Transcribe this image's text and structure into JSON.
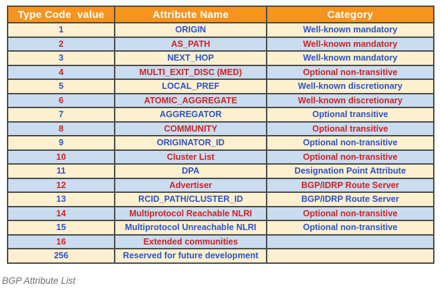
{
  "caption": "BGP Attribute List",
  "table": {
    "headers": {
      "type_code": "Type Code  value",
      "attribute_name": "Attribute Name",
      "category": "Category"
    },
    "rows": [
      {
        "code": "1",
        "name": "ORIGIN",
        "category": "Well-known mandatory"
      },
      {
        "code": "2",
        "name": "AS_PATH",
        "category": "Well-known mandatory"
      },
      {
        "code": "3",
        "name": "NEXT_HOP",
        "category": "Well-known mandatory"
      },
      {
        "code": "4",
        "name": "MULTI_EXIT_DISC (MED)",
        "category": "Optional non-transitive"
      },
      {
        "code": "5",
        "name": "LOCAL_PREF",
        "category": "Well-known discretionary"
      },
      {
        "code": "6",
        "name": "ATOMIC_AGGREGATE",
        "category": "Well-known discretionary"
      },
      {
        "code": "7",
        "name": "AGGREGATOR",
        "category": "Optional transitive"
      },
      {
        "code": "8",
        "name": "COMMUNITY",
        "category": "Optional transitive"
      },
      {
        "code": "9",
        "name": "ORIGINATOR_ID",
        "category": "Optional non-transitive"
      },
      {
        "code": "10",
        "name": "Cluster List",
        "category": "Optional non-transitive"
      },
      {
        "code": "11",
        "name": "DPA",
        "category": "Designation Point Attribute"
      },
      {
        "code": "12",
        "name": "Advertiser",
        "category": "BGP/IDRP Route Server"
      },
      {
        "code": "13",
        "name": "RCID_PATH/CLUSTER_ID",
        "category": "BGP/IDRP Route Server"
      },
      {
        "code": "14",
        "name": "Multiprotocol Reachable NLRI",
        "category": "Optional non-transitive"
      },
      {
        "code": "15",
        "name": "Multiprotocol Unreachable NLRI",
        "category": "Optional non-transitive"
      },
      {
        "code": "16",
        "name": "Extended communities",
        "category": ""
      },
      {
        "code": "256",
        "name": "Reserved for future development",
        "category": ""
      }
    ]
  },
  "colors": {
    "header_bg": "#F7941D",
    "header_text": "#FFFFFF",
    "row_cream": "#FDF0CE",
    "row_blue": "#C9DCF0",
    "text_blue": "#2B52CE",
    "text_red": "#D12222",
    "border": "#4A4A4A",
    "caption_text": "#6E6E6E"
  }
}
